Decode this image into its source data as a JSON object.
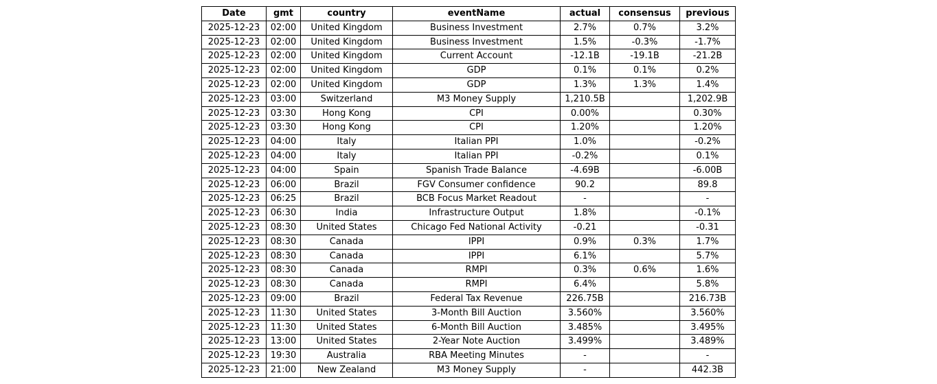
{
  "page": {
    "background_color": "#ffffff",
    "text_color": "#000000",
    "border_color": "#000000"
  },
  "chart_data": {
    "type": "table",
    "title": "",
    "columns": [
      "Date",
      "gmt",
      "country",
      "eventName",
      "actual",
      "consensus",
      "previous"
    ],
    "rows": [
      [
        "2025-12-23",
        "02:00",
        "United Kingdom",
        "Business Investment",
        "2.7%",
        "0.7%",
        "3.2%"
      ],
      [
        "2025-12-23",
        "02:00",
        "United Kingdom",
        "Business Investment",
        "1.5%",
        "-0.3%",
        "-1.7%"
      ],
      [
        "2025-12-23",
        "02:00",
        "United Kingdom",
        "Current Account",
        "-12.1B",
        "-19.1B",
        "-21.2B"
      ],
      [
        "2025-12-23",
        "02:00",
        "United Kingdom",
        "GDP",
        "0.1%",
        "0.1%",
        "0.2%"
      ],
      [
        "2025-12-23",
        "02:00",
        "United Kingdom",
        "GDP",
        "1.3%",
        "1.3%",
        "1.4%"
      ],
      [
        "2025-12-23",
        "03:00",
        "Switzerland",
        "M3 Money Supply",
        "1,210.5B",
        "",
        "1,202.9B"
      ],
      [
        "2025-12-23",
        "03:30",
        "Hong Kong",
        "CPI",
        "0.00%",
        "",
        "0.30%"
      ],
      [
        "2025-12-23",
        "03:30",
        "Hong Kong",
        "CPI",
        "1.20%",
        "",
        "1.20%"
      ],
      [
        "2025-12-23",
        "04:00",
        "Italy",
        "Italian PPI",
        "1.0%",
        "",
        "-0.2%"
      ],
      [
        "2025-12-23",
        "04:00",
        "Italy",
        "Italian PPI",
        "-0.2%",
        "",
        "0.1%"
      ],
      [
        "2025-12-23",
        "04:00",
        "Spain",
        "Spanish Trade Balance",
        "-4.69B",
        "",
        "-6.00B"
      ],
      [
        "2025-12-23",
        "06:00",
        "Brazil",
        "FGV Consumer confidence",
        "90.2",
        "",
        "89.8"
      ],
      [
        "2025-12-23",
        "06:25",
        "Brazil",
        "BCB Focus Market Readout",
        "-",
        "",
        "-"
      ],
      [
        "2025-12-23",
        "06:30",
        "India",
        "Infrastructure Output",
        "1.8%",
        "",
        "-0.1%"
      ],
      [
        "2025-12-23",
        "08:30",
        "United States",
        "Chicago Fed National Activity",
        "-0.21",
        "",
        "-0.31"
      ],
      [
        "2025-12-23",
        "08:30",
        "Canada",
        "IPPI",
        "0.9%",
        "0.3%",
        "1.7%"
      ],
      [
        "2025-12-23",
        "08:30",
        "Canada",
        "IPPI",
        "6.1%",
        "",
        "5.7%"
      ],
      [
        "2025-12-23",
        "08:30",
        "Canada",
        "RMPI",
        "0.3%",
        "0.6%",
        "1.6%"
      ],
      [
        "2025-12-23",
        "08:30",
        "Canada",
        "RMPI",
        "6.4%",
        "",
        "5.8%"
      ],
      [
        "2025-12-23",
        "09:00",
        "Brazil",
        "Federal Tax Revenue",
        "226.75B",
        "",
        "216.73B"
      ],
      [
        "2025-12-23",
        "11:30",
        "United States",
        "3-Month Bill Auction",
        "3.560%",
        "",
        "3.560%"
      ],
      [
        "2025-12-23",
        "11:30",
        "United States",
        "6-Month Bill Auction",
        "3.485%",
        "",
        "3.495%"
      ],
      [
        "2025-12-23",
        "13:00",
        "United States",
        "2-Year Note Auction",
        "3.499%",
        "",
        "3.489%"
      ],
      [
        "2025-12-23",
        "19:30",
        "Australia",
        "RBA Meeting Minutes",
        "-",
        "",
        "-"
      ],
      [
        "2025-12-23",
        "21:00",
        "New Zealand",
        "M3 Money Supply",
        "-",
        "",
        "442.3B"
      ]
    ]
  }
}
